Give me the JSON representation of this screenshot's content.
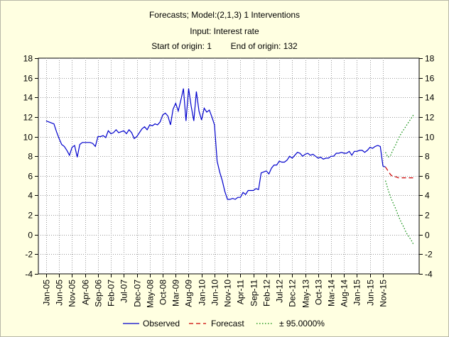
{
  "chart_data": {
    "type": "line",
    "title": "Forecasts; Model:(2,1,3)  1 Interventions",
    "subtitle": "Input: Interest rate",
    "origin_label": "Start of origin: 1        End of origin: 132",
    "xlabel": "",
    "ylabel": "",
    "ylim": [
      -4,
      18
    ],
    "yticks": [
      -4,
      -2,
      0,
      2,
      4,
      6,
      8,
      10,
      12,
      14,
      16,
      18
    ],
    "xtick_labels": [
      "Jan-05",
      "Jun-05",
      "Nov-05",
      "Apr-06",
      "Sep-06",
      "Feb-07",
      "Jul-07",
      "Dec-07",
      "May-08",
      "Oct-08",
      "Mar-09",
      "Aug-09",
      "Jan-10",
      "Jun-10",
      "Nov-10",
      "Apr-11",
      "Sep-11",
      "Feb-12",
      "Jul-12",
      "Dec-12",
      "May-13",
      "Oct-13",
      "Mar-14",
      "Aug-14",
      "Jan-15",
      "Jun-15",
      "Nov-15"
    ],
    "xtick_months": [
      1,
      6,
      11,
      16,
      21,
      26,
      31,
      36,
      41,
      46,
      51,
      56,
      61,
      66,
      71,
      76,
      81,
      86,
      91,
      96,
      101,
      106,
      111,
      116,
      121,
      126,
      131
    ],
    "xlim": [
      -2,
      145
    ],
    "grid": true,
    "legend": "bottom",
    "series": [
      {
        "name": "Observed",
        "style": "solid",
        "color": "#0000cc",
        "x": [
          1,
          2,
          3,
          4,
          5,
          6,
          7,
          8,
          9,
          10,
          11,
          12,
          13,
          14,
          15,
          16,
          17,
          18,
          19,
          20,
          21,
          22,
          23,
          24,
          25,
          26,
          27,
          28,
          29,
          30,
          31,
          32,
          33,
          34,
          35,
          36,
          37,
          38,
          39,
          40,
          41,
          42,
          43,
          44,
          45,
          46,
          47,
          48,
          49,
          50,
          51,
          52,
          53,
          54,
          55,
          56,
          57,
          58,
          59,
          60,
          61,
          62,
          63,
          64,
          65,
          66,
          67,
          68,
          69,
          70,
          71,
          72,
          73,
          74,
          75,
          76,
          77,
          78,
          79,
          80,
          81,
          82,
          83,
          84,
          85,
          86,
          87,
          88,
          89,
          90,
          91,
          92,
          93,
          94,
          95,
          96,
          97,
          98,
          99,
          100,
          101,
          102,
          103,
          104,
          105,
          106,
          107,
          108,
          109,
          110,
          111,
          112,
          113,
          114,
          115,
          116,
          117,
          118,
          119,
          120,
          121,
          122,
          123,
          124,
          125,
          126,
          127,
          128,
          129,
          130,
          131,
          132
        ],
        "y": [
          11.6,
          11.5,
          11.4,
          11.3,
          10.5,
          9.8,
          9.2,
          9.0,
          8.6,
          8.1,
          8.9,
          9.1,
          7.9,
          9.2,
          9.4,
          9.4,
          9.4,
          9.4,
          9.3,
          9.0,
          10.0,
          10.0,
          10.1,
          9.9,
          10.6,
          10.3,
          10.4,
          10.7,
          10.4,
          10.5,
          10.6,
          10.3,
          10.7,
          10.4,
          9.8,
          10.0,
          10.4,
          10.8,
          11.0,
          10.7,
          11.2,
          11.1,
          11.3,
          11.2,
          11.5,
          12.2,
          12.4,
          12.1,
          11.2,
          12.8,
          13.4,
          12.6,
          13.7,
          14.9,
          11.6,
          14.9,
          13.1,
          11.6,
          14.6,
          12.6,
          11.7,
          12.9,
          12.5,
          12.7,
          12.0,
          11.2,
          7.5,
          6.4,
          5.5,
          4.4,
          3.6,
          3.6,
          3.7,
          3.6,
          3.8,
          3.8,
          4.3,
          4.1,
          4.5,
          4.5,
          4.5,
          4.7,
          4.6,
          6.3,
          6.4,
          6.5,
          6.2,
          6.8,
          7.1,
          7.1,
          7.5,
          7.4,
          7.4,
          7.6,
          8.0,
          7.8,
          8.1,
          8.4,
          8.3,
          8.0,
          8.2,
          8.3,
          8.1,
          8.2,
          8.0,
          7.8,
          7.9,
          7.7,
          7.8,
          7.8,
          8.0,
          8.0,
          8.3,
          8.3,
          8.4,
          8.3,
          8.3,
          8.5,
          8.1,
          8.5,
          8.5,
          8.6,
          8.6,
          8.4,
          8.6,
          8.9,
          8.8,
          9.0,
          9.1,
          9.0,
          7.0,
          6.9
        ]
      },
      {
        "name": "Forecast",
        "style": "dashed",
        "color": "#cc0000",
        "x": [
          132,
          133,
          134,
          135,
          136,
          137,
          138,
          139,
          140,
          141,
          142,
          143
        ],
        "y": [
          6.9,
          6.5,
          6.1,
          5.9,
          5.9,
          5.8,
          5.8,
          5.8,
          5.8,
          5.8,
          5.8,
          5.8
        ]
      },
      {
        "name": "± 95.0000%",
        "style": "dotted",
        "color": "#008800",
        "bands": [
          {
            "x": [
              132,
              133,
              134,
              135,
              136,
              137,
              138,
              139,
              140,
              141,
              142,
              143
            ],
            "y": [
              8.4,
              7.9,
              8.1,
              8.7,
              9.2,
              9.8,
              10.3,
              10.7,
              11.1,
              11.5,
              11.9,
              12.3
            ]
          },
          {
            "x": [
              132,
              133,
              134,
              135,
              136,
              137,
              138,
              139,
              140,
              141,
              142,
              143
            ],
            "y": [
              5.5,
              4.6,
              3.8,
              3.2,
              2.6,
              1.9,
              1.3,
              0.8,
              0.2,
              -0.2,
              -0.6,
              -1.1
            ]
          }
        ]
      }
    ]
  }
}
